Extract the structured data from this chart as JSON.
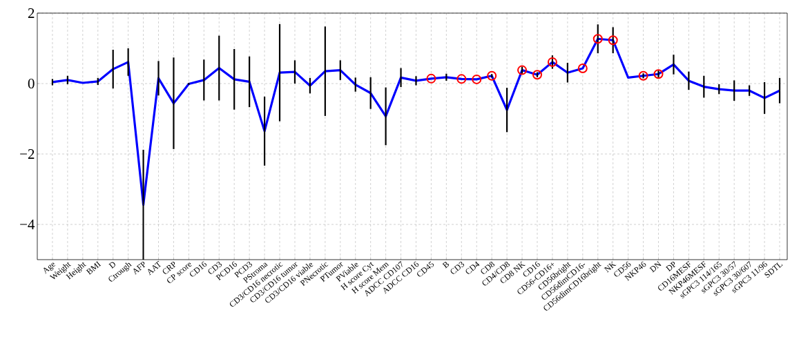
{
  "chart_data": {
    "type": "line",
    "categories": [
      "Age",
      "Weight",
      "Height",
      "BMI",
      "D",
      "Ctrough",
      "AFP",
      "AAT",
      "CRP",
      "CP score",
      "CD16",
      "CD3",
      "PCD16",
      "PCD3",
      "PStroma",
      "CD3/CD16 necrotic",
      "CD3/CD16 tumor",
      "CD3/CD16 viable",
      "PNecrotic",
      "PTumor",
      "PViable",
      "H score Cyt",
      "H score Mem",
      "ADCC CD107",
      "ADCC CD16",
      "CD45",
      "B",
      "CD3",
      "CD4",
      "CD8",
      "CD4/CD8",
      "CD8 NK",
      "CD16",
      "CD56-CD16+",
      "CD56bright",
      "CD56dimCD16-",
      "CD56dimCD16bright",
      "NK",
      "CD56",
      "NKP46",
      "DN",
      "DP",
      "CD16MESF",
      "NKP46MESF",
      "sGPC3 114/165",
      "sGPC3 30/57",
      "sGPC3 30/607",
      "sGPC3 11/96",
      "SDTL"
    ],
    "series": [
      {
        "color": "#0000ff",
        "marker": "none",
        "values": [
          0.04,
          0.1,
          0.02,
          0.06,
          0.41,
          0.61,
          -3.44,
          0.15,
          -0.56,
          -0.01,
          0.1,
          0.44,
          0.12,
          0.05,
          -1.35,
          0.31,
          0.33,
          -0.06,
          0.35,
          0.38,
          -0.03,
          -0.27,
          -0.93,
          0.17,
          0.08,
          0.14,
          0.18,
          0.13,
          0.12,
          0.22,
          -0.75,
          0.38,
          0.25,
          0.61,
          0.31,
          0.43,
          1.27,
          1.23,
          0.17,
          0.22,
          0.27,
          0.54,
          0.08,
          -0.09,
          -0.16,
          -0.2,
          -0.2,
          -0.41,
          -0.2
        ],
        "errors": [
          0.09,
          0.12,
          0.0,
          0.1,
          0.55,
          0.39,
          1.56,
          0.49,
          1.3,
          0.03,
          0.58,
          0.92,
          0.86,
          0.72,
          0.98,
          1.38,
          0.33,
          0.22,
          1.27,
          0.28,
          0.2,
          0.45,
          0.82,
          0.27,
          0.13,
          null,
          0.1,
          null,
          null,
          0.05,
          0.63,
          0.1,
          0.07,
          0.19,
          0.28,
          null,
          0.41,
          0.37,
          null,
          0.07,
          0.1,
          0.28,
          0.26,
          0.31,
          0.14,
          0.29,
          0.15,
          0.45,
          0.36
        ]
      },
      {
        "type": "scatter",
        "color": "#ff0000",
        "marker": "circle",
        "values": [
          null,
          null,
          null,
          null,
          null,
          null,
          null,
          null,
          null,
          null,
          null,
          null,
          null,
          null,
          null,
          null,
          null,
          null,
          null,
          null,
          null,
          null,
          null,
          null,
          null,
          0.14,
          null,
          0.13,
          0.12,
          0.22,
          null,
          0.38,
          0.25,
          0.61,
          null,
          0.43,
          1.27,
          1.23,
          null,
          0.22,
          0.27,
          null,
          null,
          null,
          null,
          null,
          null,
          null,
          null
        ]
      }
    ],
    "ylim": [
      -5,
      2
    ],
    "yticks": [
      {
        "value": -4,
        "label": "−4"
      },
      {
        "value": -2,
        "label": "−2"
      },
      0,
      2
    ],
    "grid": true
  }
}
